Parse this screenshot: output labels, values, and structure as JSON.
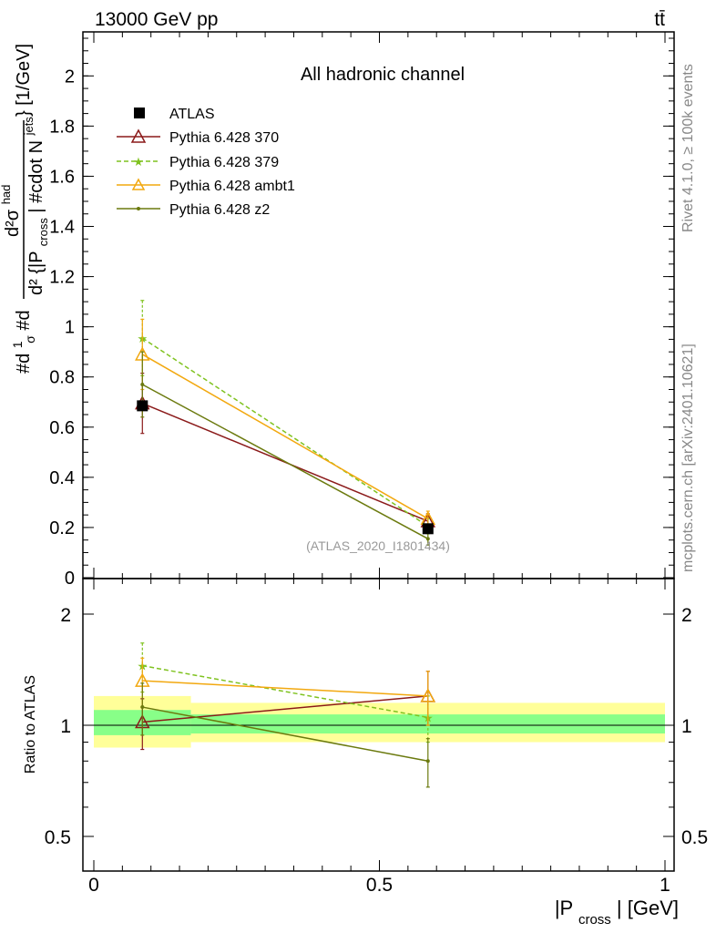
{
  "header": {
    "energy_label": "13000 GeV pp",
    "process_label": "tt̄"
  },
  "side_labels": {
    "rivet": "Rivet 4.1.0, ≥ 100k events",
    "mcplots": "mcplots.cern.ch [arXiv:2401.10621]"
  },
  "chart_data": [
    {
      "type": "line",
      "title": "All hadronic channel",
      "watermark": "(ATLAS_2020_I1801434)",
      "ylabel": "#d1/σ #d d²σ^{had} / d² {|P_cross| #cdot N_jets} [1/GeV]",
      "ylabel_parts": {
        "main": "#d",
        "frac_num": "1",
        "frac_den": "σ",
        "hash_d": "#d",
        "num": "d²σ",
        "num_sup": "had",
        "den": "d² {|P",
        "den_sub": "cross",
        "den_rest": "| #cdot N",
        "den_sub2": "jets",
        "units": "} [1/GeV]"
      },
      "xlim": [
        0,
        1
      ],
      "ylim": [
        0,
        2.15
      ],
      "yticks": [
        0,
        0.2,
        0.4,
        0.6,
        0.8,
        1,
        1.2,
        1.4,
        1.6,
        1.8,
        2
      ],
      "ytick_labels": [
        "0",
        "0.2",
        "0.4",
        "0.6",
        "0.8",
        "1",
        "1.2",
        "1.4",
        "1.6",
        "1.8",
        "2"
      ],
      "x": [
        0.085,
        0.585
      ],
      "series": [
        {
          "name": "ATLAS",
          "color": "#000000",
          "marker": "square",
          "line": "none",
          "values": [
            0.685,
            0.195
          ],
          "err": [
            0.0,
            0.0
          ]
        },
        {
          "name": "Pythia 6.428 370",
          "color": "#8b1a1a",
          "marker": "triangle-open",
          "line": "solid",
          "values": [
            0.695,
            0.225
          ],
          "err": [
            0.12,
            0.03
          ]
        },
        {
          "name": "Pythia 6.428 379",
          "color": "#7fc21f",
          "marker": "star",
          "line": "dashed",
          "values": [
            0.955,
            0.205
          ],
          "err": [
            0.15,
            0.03
          ]
        },
        {
          "name": "Pythia 6.428 ambt1",
          "color": "#f2a80f",
          "marker": "triangle-open",
          "line": "solid",
          "values": [
            0.89,
            0.235
          ],
          "err": [
            0.14,
            0.03
          ]
        },
        {
          "name": "Pythia 6.428 z2",
          "color": "#6b7a0e",
          "marker": "dot",
          "line": "solid",
          "values": [
            0.77,
            0.155
          ],
          "err": [
            0.13,
            0.025
          ]
        }
      ]
    },
    {
      "type": "line",
      "title": "",
      "ylabel": "Ratio to ATLAS",
      "xlabel": "|P_cross| [GeV]",
      "xlabel_parts": {
        "main": "|P",
        "sub": "cross",
        "rest": "| [GeV]"
      },
      "xlim": [
        0,
        1
      ],
      "ylim": [
        0.4,
        2.3
      ],
      "yscale": "log",
      "yticks": [
        0.5,
        1,
        2
      ],
      "ytick_labels": [
        "0.5",
        "1",
        "2"
      ],
      "xticks": [
        0,
        0.5,
        1
      ],
      "xtick_labels": [
        "0",
        "0.5",
        "1"
      ],
      "x": [
        0.085,
        0.585
      ],
      "bands": [
        {
          "x_range": [
            0.0,
            0.17
          ],
          "yellow": [
            0.87,
            1.2
          ],
          "green": [
            0.94,
            1.1
          ]
        },
        {
          "x_range": [
            0.17,
            1.0
          ],
          "yellow": [
            0.9,
            1.15
          ],
          "green": [
            0.95,
            1.07
          ]
        }
      ],
      "series": [
        {
          "name": "Pythia 6.428 370",
          "color": "#8b1a1a",
          "marker": "triangle-open",
          "line": "solid",
          "values": [
            1.02,
            1.2
          ],
          "err": [
            0.16,
            0.2
          ]
        },
        {
          "name": "Pythia 6.428 379",
          "color": "#7fc21f",
          "marker": "star",
          "line": "dashed",
          "values": [
            1.45,
            1.05
          ],
          "err": [
            0.22,
            0.15
          ]
        },
        {
          "name": "Pythia 6.428 ambt1",
          "color": "#f2a80f",
          "marker": "triangle-open",
          "line": "solid",
          "values": [
            1.32,
            1.2
          ],
          "err": [
            0.2,
            0.2
          ]
        },
        {
          "name": "Pythia 6.428 z2",
          "color": "#6b7a0e",
          "marker": "dot",
          "line": "solid",
          "values": [
            1.12,
            0.8
          ],
          "err": [
            0.18,
            0.12
          ]
        }
      ]
    }
  ]
}
